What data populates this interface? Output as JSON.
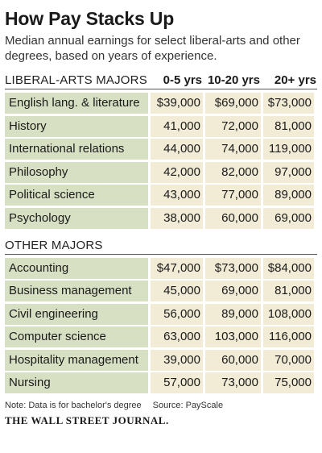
{
  "header": {
    "title": "How Pay Stacks Up",
    "subtitle": "Median annual earnings for select liberal-arts and other degrees, based on years of experience."
  },
  "chart_data": {
    "type": "table",
    "columns": [
      "0-5 yrs",
      "10-20 yrs",
      "20+ yrs"
    ],
    "sections": [
      {
        "label": "LIBERAL-ARTS MAJORS",
        "rows": [
          {
            "major": "English lang. & literature",
            "values": [
              "$39,000",
              "$69,000",
              "$73,000"
            ]
          },
          {
            "major": "History",
            "values": [
              "41,000",
              "72,000",
              "81,000"
            ]
          },
          {
            "major": "International relations",
            "values": [
              "44,000",
              "74,000",
              "119,000"
            ]
          },
          {
            "major": "Philosophy",
            "values": [
              "42,000",
              "82,000",
              "97,000"
            ]
          },
          {
            "major": "Political science",
            "values": [
              "43,000",
              "77,000",
              "89,000"
            ]
          },
          {
            "major": "Psychology",
            "values": [
              "38,000",
              "60,000",
              "69,000"
            ]
          }
        ]
      },
      {
        "label": "OTHER MAJORS",
        "rows": [
          {
            "major": "Accounting",
            "values": [
              "$47,000",
              "$73,000",
              "$84,000"
            ]
          },
          {
            "major": "Business management",
            "values": [
              "45,000",
              "69,000",
              "81,000"
            ]
          },
          {
            "major": "Civil engineering",
            "values": [
              "56,000",
              "89,000",
              "108,000"
            ]
          },
          {
            "major": "Computer science",
            "values": [
              "63,000",
              "103,000",
              "116,000"
            ]
          },
          {
            "major": "Hospitality management",
            "values": [
              "39,000",
              "60,000",
              "70,000"
            ]
          },
          {
            "major": "Nursing",
            "values": [
              "57,000",
              "73,000",
              "75,000"
            ]
          }
        ]
      }
    ]
  },
  "footer": {
    "note": "Note: Data is for bachelor's degree",
    "source": "Source: PayScale",
    "publisher": "THE WALL STREET JOURNAL."
  },
  "colors": {
    "major_cell": "#d8e0c3",
    "value_cell": "#f2ecd6",
    "rule": "#555555"
  }
}
